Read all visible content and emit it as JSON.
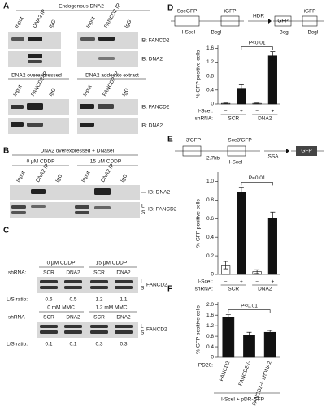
{
  "panels": {
    "A": {
      "label": "A",
      "top": {
        "title": "Endogenous DNA2",
        "lanes_left": [
          "Input",
          "DNA2 IP",
          "IgG"
        ],
        "lanes_right": [
          "Input",
          "FANCD2 IP",
          "IgG"
        ],
        "blots": [
          "IB: FANCD2",
          "IB: DNA2"
        ]
      },
      "bottom": {
        "title_left": "DNA2 overexpressed",
        "title_right": "DNA2 added to extract",
        "lanes_left": [
          "Input",
          "FANCD2 IP",
          "IgG"
        ],
        "lanes_right": [
          "Input",
          "FANCD2 IP",
          "IgG"
        ],
        "blots": [
          "IB: FANCD2",
          "IB: DNA2"
        ]
      }
    },
    "B": {
      "label": "B",
      "title": "DNA2 overexpressed + DNaseI",
      "conditions": [
        "0 μM CDDP",
        "15 μM CDDP"
      ],
      "lanes": [
        "Input",
        "DNA2 IP",
        "IgG",
        "Input",
        "DNA2 IP",
        "IgG"
      ],
      "blots": [
        "IB: DNA2",
        "IB: FANCD2"
      ],
      "forms": [
        "L",
        "S"
      ]
    },
    "C": {
      "label": "C",
      "top": {
        "conditions": [
          "0 μM CDDP",
          "15 μM CDDP"
        ],
        "row_label": "shRNA:",
        "lanes": [
          "SCR",
          "DNA2",
          "SCR",
          "DNA2"
        ],
        "blot": "FANCD2",
        "forms": [
          "L",
          "S"
        ],
        "ratio_label": "L/S ratio:",
        "ratios": [
          "0.6",
          "0.5",
          "1.2",
          "1.1"
        ]
      },
      "bottom": {
        "conditions": [
          "0 mM MMC",
          "1.2 mM MMC"
        ],
        "row_label": "shRNA",
        "lanes": [
          "SCR",
          "DNA2",
          "SCR",
          "DNA2"
        ],
        "blot": "FANCD2",
        "forms": [
          "L",
          "S"
        ],
        "ratio_label": "L/S ratio:",
        "ratios": [
          "0.1",
          "0.1",
          "0.3",
          "0.3"
        ]
      }
    },
    "D": {
      "label": "D",
      "diagram": [
        "SceGFP",
        "iGFP",
        "I-SceI",
        "BcgI",
        "HDR",
        "GFP",
        "BcgI",
        "iGFP",
        "BcgI"
      ]
    },
    "E": {
      "label": "E",
      "diagram": [
        "3'GFP",
        "Sce3'GFP",
        "2.7kb",
        "I-SceI",
        "SSA",
        "GFP"
      ]
    },
    "F": {
      "label": "F"
    }
  },
  "chart_data": [
    {
      "type": "bar",
      "ylabel": "% GFP positive cells",
      "categories": [
        "−",
        "+",
        "−",
        "+"
      ],
      "groups": [
        "SCR",
        "DNA2"
      ],
      "row_labels": [
        "I-SceI:",
        "shRNA:"
      ],
      "values": [
        0.02,
        0.45,
        0.02,
        1.38
      ],
      "errors": [
        0.01,
        0.1,
        0.01,
        0.12
      ],
      "colors": [
        "#ffffff",
        "#111111",
        "#ffffff",
        "#111111"
      ],
      "annotation": "P<0.01",
      "ylim": [
        0,
        1.7
      ],
      "yticks": [
        0,
        0.4,
        0.8,
        1.2,
        1.6
      ]
    },
    {
      "type": "bar",
      "ylabel": "% GFP positive cells",
      "categories": [
        "−",
        "+",
        "−",
        "+"
      ],
      "groups": [
        "SCR",
        "DNA2"
      ],
      "row_labels": [
        "I-SceI:",
        "shRNA:"
      ],
      "values": [
        0.1,
        0.88,
        0.03,
        0.6
      ],
      "errors": [
        0.04,
        0.06,
        0.02,
        0.07
      ],
      "colors": [
        "#ffffff",
        "#111111",
        "#ffffff",
        "#111111"
      ],
      "annotation": "P=0.01",
      "ylim": [
        0,
        1.1
      ],
      "yticks": [
        0,
        0.2,
        0.4,
        0.6,
        0.8,
        {
          "value": 1,
          "label": "1.0"
        }
      ]
    },
    {
      "type": "bar",
      "ylabel": "% GFP positive cells",
      "categories": [
        "FANCD2",
        "FANCD2-/-",
        "FANCD2-/- shDNA2"
      ],
      "row_labels": [
        "PD20:"
      ],
      "footer": "I-SceI + pDR-GFP",
      "values": [
        1.52,
        0.85,
        0.95
      ],
      "errors": [
        0.1,
        0.1,
        0.07
      ],
      "colors": [
        "#111111",
        "#111111",
        "#111111"
      ],
      "annotation": "P<0.01",
      "ylim": [
        0,
        2.1
      ],
      "yticks": [
        0,
        0.4,
        0.8,
        1.2,
        1.6,
        {
          "value": 2,
          "label": "2.0"
        }
      ]
    }
  ]
}
